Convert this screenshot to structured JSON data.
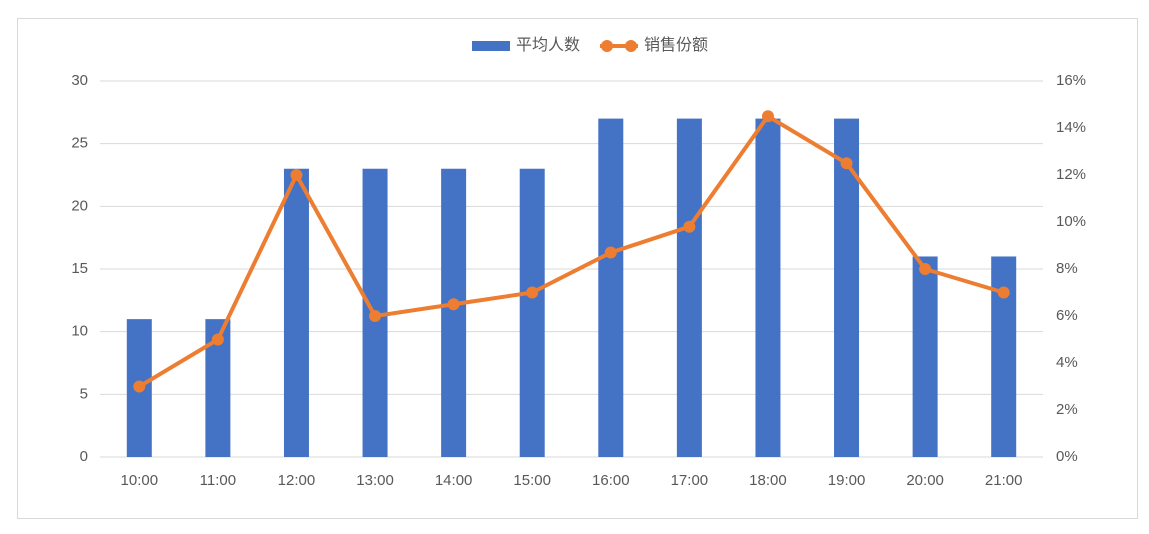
{
  "chart_data": {
    "type": "combo",
    "categories": [
      "10:00",
      "11:00",
      "12:00",
      "13:00",
      "14:00",
      "15:00",
      "16:00",
      "17:00",
      "18:00",
      "19:00",
      "20:00",
      "21:00"
    ],
    "series": [
      {
        "name": "平均人数",
        "type": "bar",
        "color": "#4472c4",
        "values": [
          11,
          11,
          23,
          23,
          23,
          23,
          27,
          27,
          27,
          27,
          16,
          16
        ]
      },
      {
        "name": "销售份额",
        "type": "line",
        "axis": "y2",
        "color": "#ed7d31",
        "values": [
          3.0,
          5.0,
          12.0,
          6.0,
          6.5,
          7.0,
          8.7,
          9.8,
          14.5,
          12.5,
          8.0,
          7.0
        ]
      }
    ],
    "ylim": [
      0,
      30
    ],
    "yticks": [
      0,
      5,
      10,
      15,
      20,
      25,
      30
    ],
    "y2lim": [
      0,
      16
    ],
    "y2ticks": [
      {
        "value": 0,
        "label": "0%"
      },
      {
        "value": 2,
        "label": "2%"
      },
      {
        "value": 4,
        "label": "4%"
      },
      {
        "value": 6,
        "label": "6%"
      },
      {
        "value": 8,
        "label": "8%"
      },
      {
        "value": 10,
        "label": "10%"
      },
      {
        "value": 12,
        "label": "12%"
      },
      {
        "value": 14,
        "label": "14%"
      },
      {
        "value": 16,
        "label": "16%"
      }
    ],
    "grid": true,
    "legend": "top"
  }
}
